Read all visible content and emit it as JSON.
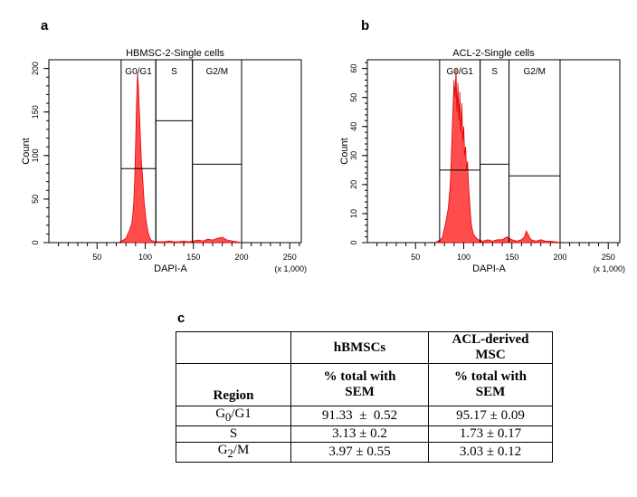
{
  "panels": {
    "a": "a",
    "b": "b",
    "c": "c"
  },
  "chart_data": [
    {
      "type": "area",
      "title": "HBMSC-2-Single cells",
      "xlabel": "DAPI-A",
      "ylabel": "Count",
      "x_multiplier": "(x 1,000)",
      "xlim": [
        0,
        262
      ],
      "ylim": [
        0,
        210
      ],
      "x_ticks": [
        50,
        100,
        150,
        200,
        250
      ],
      "y_ticks": [
        0,
        50,
        100,
        150,
        200
      ],
      "color": "#ff4d4d",
      "gates": [
        {
          "name": "G0/G1",
          "start": 75,
          "end": 111,
          "level": 85
        },
        {
          "name": "S",
          "start": 111,
          "end": 149,
          "level": 140
        },
        {
          "name": "G2/M",
          "start": 149,
          "end": 200,
          "level": 90
        }
      ],
      "x": [
        72,
        76,
        80,
        82,
        84,
        86,
        87,
        88,
        89,
        90,
        91,
        92,
        93,
        94,
        95,
        96,
        97,
        98,
        99,
        100,
        101,
        102,
        103,
        104,
        105,
        106,
        108,
        110,
        115,
        120,
        125,
        130,
        135,
        140,
        145,
        150,
        155,
        160,
        165,
        170,
        175,
        180,
        185,
        190,
        195,
        200
      ],
      "y": [
        0,
        2,
        5,
        10,
        15,
        22,
        30,
        45,
        70,
        110,
        160,
        195,
        178,
        150,
        120,
        95,
        80,
        62,
        45,
        35,
        25,
        18,
        12,
        8,
        5,
        3,
        2,
        1,
        1,
        1,
        2,
        1,
        1,
        2,
        1,
        2,
        3,
        2,
        4,
        3,
        5,
        6,
        3,
        2,
        1,
        0
      ]
    },
    {
      "type": "area",
      "title": "ACL-2-Single cells",
      "xlabel": "DAPI-A",
      "ylabel": "Count",
      "x_multiplier": "(x 1,000)",
      "xlim": [
        0,
        262
      ],
      "ylim": [
        0,
        63
      ],
      "x_ticks": [
        50,
        100,
        150,
        200,
        250
      ],
      "y_ticks": [
        0,
        10,
        20,
        30,
        40,
        50,
        60
      ],
      "color": "#ff4d4d",
      "gates": [
        {
          "name": "G0/G1",
          "start": 75,
          "end": 117,
          "level": 25
        },
        {
          "name": "S",
          "start": 117,
          "end": 147,
          "level": 27
        },
        {
          "name": "G2/M",
          "start": 147,
          "end": 200,
          "level": 23
        }
      ],
      "x": [
        70,
        73,
        76,
        78,
        80,
        82,
        84,
        86,
        87,
        88,
        89,
        90,
        91,
        92,
        93,
        94,
        95,
        96,
        97,
        98,
        99,
        100,
        101,
        102,
        103,
        104,
        105,
        106,
        107,
        108,
        110,
        112,
        115,
        120,
        125,
        130,
        135,
        140,
        145,
        150,
        155,
        160,
        163,
        165,
        168,
        170,
        175,
        180,
        185,
        190,
        195,
        200
      ],
      "y": [
        0,
        0.5,
        1,
        2,
        5,
        8,
        12,
        20,
        28,
        38,
        48,
        56,
        50,
        60,
        45,
        55,
        42,
        52,
        38,
        48,
        35,
        40,
        30,
        33,
        25,
        28,
        20,
        15,
        10,
        6,
        3,
        2,
        1,
        0.5,
        1,
        0.5,
        1,
        1,
        2,
        1,
        0.5,
        1,
        2,
        4,
        2,
        1,
        0.5,
        1,
        0.5,
        0.5,
        0.3,
        0
      ]
    },
    {
      "type": "table",
      "headers": {
        "region": "Region",
        "col1_top": "hBMSCs",
        "col2_top_1": "ACL-derived",
        "col2_top_2": "MSC",
        "sub1_1": "% total with",
        "sub1_2": "SEM",
        "sub2_1": "% total with",
        "sub2_2": "SEM"
      },
      "rows": [
        {
          "region_main": "G",
          "region_sub": "0",
          "region_rest": "/G1",
          "hbmsc": "91.33  ±  0.52",
          "acl": "95.17 ± 0.09"
        },
        {
          "region_main": "S",
          "region_sub": "",
          "region_rest": "",
          "hbmsc": "3.13 ± 0.2",
          "acl": "1.73 ± 0.17"
        },
        {
          "region_main": "G",
          "region_sub": "2",
          "region_rest": "/M",
          "hbmsc": "3.97 ± 0.55",
          "acl": "3.03 ± 0.12"
        }
      ]
    }
  ]
}
